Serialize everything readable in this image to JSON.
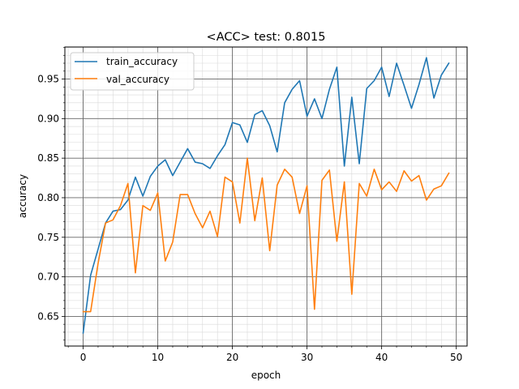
{
  "chart_data": {
    "type": "line",
    "title": "<ACC> test: 0.8015",
    "xlabel": "epoch",
    "ylabel": "accuracy",
    "xlim": [
      -2.45,
      51.45
    ],
    "ylim": [
      0.6125,
      0.9905
    ],
    "xticks": [
      0,
      10,
      20,
      30,
      40,
      50
    ],
    "yticks": [
      0.65,
      0.7,
      0.75,
      0.8,
      0.85,
      0.9,
      0.95
    ],
    "ytick_labels": [
      "0.65",
      "0.70",
      "0.75",
      "0.80",
      "0.85",
      "0.90",
      "0.95"
    ],
    "grid": {
      "major": true,
      "minor": true
    },
    "legend_position": "top-left",
    "x": [
      0,
      1,
      2,
      3,
      4,
      5,
      6,
      7,
      8,
      9,
      10,
      11,
      12,
      13,
      14,
      15,
      16,
      17,
      18,
      19,
      20,
      21,
      22,
      23,
      24,
      25,
      26,
      27,
      28,
      29,
      30,
      31,
      32,
      33,
      34,
      35,
      36,
      37,
      38,
      39,
      40,
      41,
      42,
      43,
      44,
      45,
      46,
      47,
      48,
      49
    ],
    "series": [
      {
        "name": "train_accuracy",
        "color": "#1f77b4",
        "values": [
          0.629,
          0.702,
          0.735,
          0.768,
          0.783,
          0.785,
          0.797,
          0.826,
          0.802,
          0.827,
          0.84,
          0.848,
          0.828,
          0.845,
          0.862,
          0.845,
          0.843,
          0.837,
          0.853,
          0.867,
          0.895,
          0.892,
          0.87,
          0.905,
          0.91,
          0.891,
          0.858,
          0.92,
          0.937,
          0.948,
          0.903,
          0.925,
          0.9,
          0.937,
          0.965,
          0.84,
          0.927,
          0.843,
          0.938,
          0.948,
          0.965,
          0.928,
          0.97,
          0.942,
          0.913,
          0.943,
          0.977,
          0.926,
          0.955,
          0.97
        ]
      },
      {
        "name": "val_accuracy",
        "color": "#ff7f0e",
        "values": [
          0.656,
          0.656,
          0.717,
          0.768,
          0.772,
          0.79,
          0.818,
          0.705,
          0.79,
          0.784,
          0.806,
          0.72,
          0.744,
          0.804,
          0.804,
          0.78,
          0.762,
          0.783,
          0.751,
          0.826,
          0.82,
          0.768,
          0.85,
          0.771,
          0.825,
          0.733,
          0.816,
          0.836,
          0.826,
          0.78,
          0.815,
          0.659,
          0.822,
          0.835,
          0.745,
          0.82,
          0.678,
          0.818,
          0.802,
          0.836,
          0.81,
          0.82,
          0.808,
          0.834,
          0.821,
          0.828,
          0.797,
          0.811,
          0.815,
          0.831
        ]
      }
    ]
  }
}
